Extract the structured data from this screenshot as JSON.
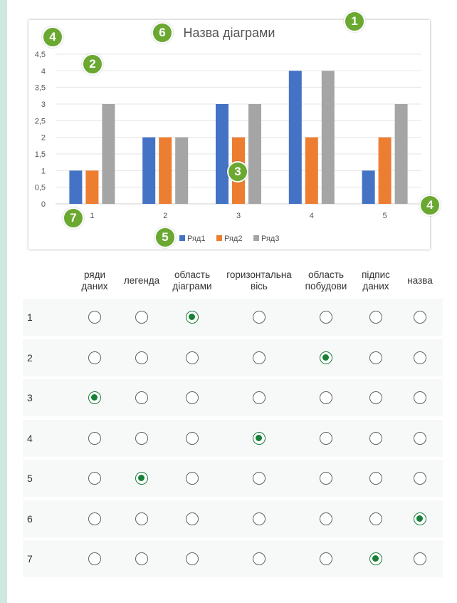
{
  "chart_data": {
    "type": "bar",
    "title": "Назва діаграми",
    "categories": [
      "1",
      "2",
      "3",
      "4",
      "5"
    ],
    "series": [
      {
        "name": "Ряд1",
        "color": "#4472c4",
        "values": [
          1,
          2,
          3,
          4,
          1
        ]
      },
      {
        "name": "Ряд2",
        "color": "#ed7d31",
        "values": [
          1,
          2,
          2,
          2,
          2
        ]
      },
      {
        "name": "Ряд3",
        "color": "#a5a5a5",
        "values": [
          3,
          2,
          3,
          4,
          3
        ]
      }
    ],
    "y_ticks": [
      "0",
      "0,5",
      "1",
      "1,5",
      "2",
      "2,5",
      "3",
      "3,5",
      "4",
      "4,5"
    ],
    "ylim": [
      0,
      4.5
    ],
    "grid": true,
    "legend_position": "bottom"
  },
  "badges": [
    "1",
    "2",
    "3",
    "4",
    "4",
    "5",
    "6",
    "7"
  ],
  "badge_color": "#6aa832",
  "radio_color": "#188038",
  "columns": [
    "ряди даних",
    "легенда",
    "область діаграми",
    "горизонтальна вісь",
    "область побудови",
    "підпис даних",
    "назва"
  ],
  "rows": [
    {
      "label": "1",
      "selected": 2
    },
    {
      "label": "2",
      "selected": 4
    },
    {
      "label": "3",
      "selected": 0
    },
    {
      "label": "4",
      "selected": 3
    },
    {
      "label": "5",
      "selected": 1
    },
    {
      "label": "6",
      "selected": 6
    },
    {
      "label": "7",
      "selected": 5
    }
  ]
}
